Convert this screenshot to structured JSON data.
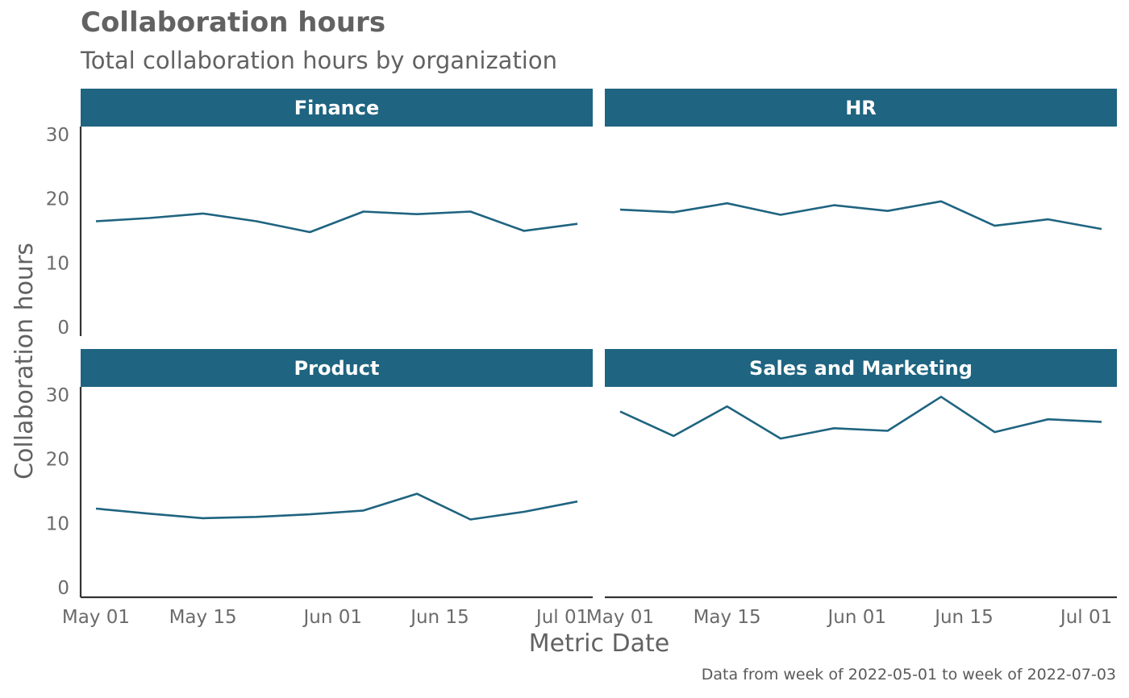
{
  "title": "Collaboration hours",
  "subtitle": "Total collaboration hours by organization",
  "caption": "Data from week of 2022-05-01 to week of 2022-07-03",
  "colors": {
    "strip": "#1f6480",
    "line": "#1f6480",
    "axis": "#333333"
  },
  "chart_data": {
    "type": "line",
    "xlabel": "Metric Date",
    "ylabel": "Collaboration hours",
    "ylim": [
      0,
      31
    ],
    "xlim": [
      "2022-04-29",
      "2022-07-05"
    ],
    "y_ticks": [
      0,
      10,
      20,
      30
    ],
    "x_ticks": [
      {
        "date": "2022-05-01",
        "label": "May 01"
      },
      {
        "date": "2022-05-15",
        "label": "May 15"
      },
      {
        "date": "2022-06-01",
        "label": "Jun 01"
      },
      {
        "date": "2022-06-15",
        "label": "Jun 15"
      },
      {
        "date": "2022-07-01",
        "label": "Jul 01"
      }
    ],
    "x": [
      "2022-05-01",
      "2022-05-08",
      "2022-05-15",
      "2022-05-22",
      "2022-05-29",
      "2022-06-05",
      "2022-06-12",
      "2022-06-19",
      "2022-06-26",
      "2022-07-03"
    ],
    "facets": [
      {
        "name": "Finance",
        "values": [
          16.5,
          17.0,
          17.7,
          16.5,
          14.8,
          18.0,
          17.6,
          18.0,
          15.0,
          16.1
        ]
      },
      {
        "name": "HR",
        "values": [
          18.3,
          17.9,
          19.3,
          17.5,
          19.0,
          18.1,
          19.6,
          15.8,
          16.8,
          15.3
        ]
      },
      {
        "name": "Product",
        "values": [
          12.3,
          11.5,
          10.8,
          11.0,
          11.4,
          12.0,
          14.6,
          10.6,
          11.8,
          13.4
        ]
      },
      {
        "name": "Sales and Marketing",
        "values": [
          27.4,
          23.6,
          28.2,
          23.2,
          24.8,
          24.4,
          29.7,
          24.2,
          26.2,
          25.8
        ]
      }
    ]
  }
}
